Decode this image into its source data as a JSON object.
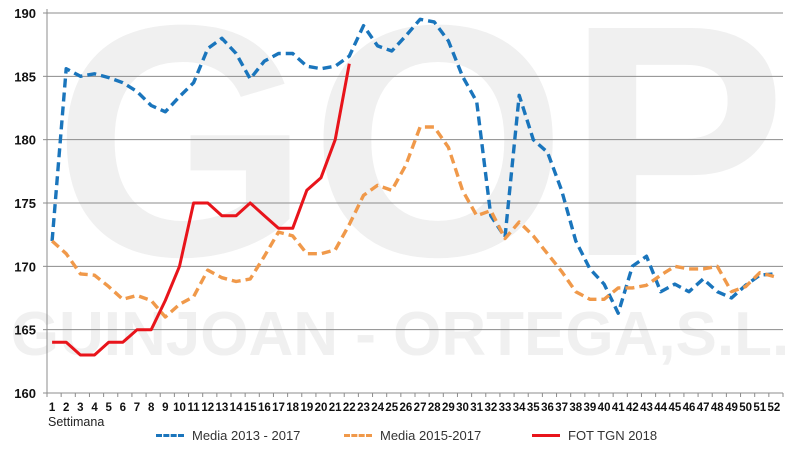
{
  "chart_data": {
    "type": "line",
    "title": "",
    "xlabel": "Settimana",
    "ylabel": "",
    "ylim": [
      160,
      190
    ],
    "yticks": [
      160,
      165,
      170,
      175,
      180,
      185,
      190
    ],
    "grid": true,
    "legend_position": "bottom",
    "watermark": [
      "GOP",
      "GUINJOAN - ORTEGA,S.L."
    ],
    "x": [
      1,
      2,
      3,
      4,
      5,
      6,
      7,
      8,
      9,
      10,
      11,
      12,
      13,
      14,
      15,
      16,
      17,
      18,
      19,
      20,
      21,
      22,
      23,
      24,
      25,
      26,
      27,
      28,
      29,
      30,
      31,
      32,
      33,
      34,
      35,
      36,
      37,
      38,
      39,
      40,
      41,
      42,
      43,
      44,
      45,
      46,
      47,
      48,
      49,
      50,
      51,
      52
    ],
    "series": [
      {
        "name": "Media 2013 - 2017",
        "color": "#1a75bc",
        "style": "dashed",
        "values": [
          172,
          185.6,
          185,
          185.2,
          184.9,
          184.5,
          183.8,
          182.7,
          182.2,
          183.4,
          184.5,
          187.2,
          188,
          186.8,
          184.8,
          186.2,
          186.8,
          186.8,
          185.8,
          185.6,
          185.8,
          186.6,
          189,
          187.4,
          187,
          188.2,
          189.5,
          189.3,
          187.8,
          185,
          183,
          174,
          172.3,
          183.5,
          180,
          179,
          176,
          172,
          169.8,
          168.6,
          166.3,
          170,
          170.8,
          168,
          168.6,
          168,
          169,
          168,
          167.5,
          168.5,
          169.3,
          169.4
        ]
      },
      {
        "name": "Media 2015-2017",
        "color": "#f0994a",
        "style": "dashed",
        "values": [
          172,
          171,
          169.4,
          169.3,
          168.4,
          167.4,
          167.7,
          167.3,
          166,
          167,
          167.6,
          169.7,
          169.1,
          168.8,
          169,
          170.8,
          172.7,
          172.4,
          171,
          171,
          171.3,
          173.3,
          175.6,
          176.4,
          176,
          178,
          181,
          181,
          179.4,
          176,
          174,
          174.4,
          172.2,
          173.5,
          172.4,
          171,
          169.6,
          168,
          167.4,
          167.4,
          168.3,
          168.3,
          168.5,
          169.3,
          170,
          169.8,
          169.8,
          170,
          168,
          168.4,
          169.5,
          169.2
        ]
      },
      {
        "name": "FOT TGN 2018",
        "color": "#e8141b",
        "style": "solid",
        "values": [
          164,
          164,
          163,
          163,
          164,
          164,
          165,
          165,
          167.3,
          170,
          175,
          175,
          174,
          174,
          175,
          174,
          173,
          173,
          176,
          177,
          180,
          186
        ]
      }
    ]
  }
}
